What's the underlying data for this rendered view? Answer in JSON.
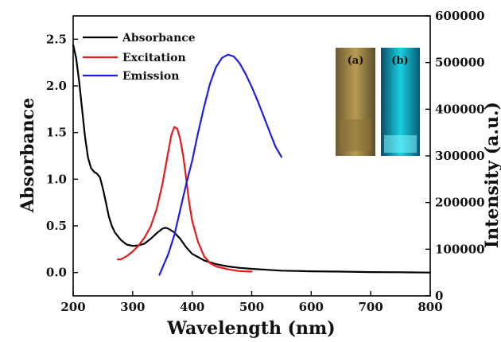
{
  "chart_data": {
    "type": "line",
    "xlabel": "Wavelength (nm)",
    "ylabel_left": "Absorbance",
    "ylabel_right": "Intensity (a.u.)",
    "xlim": [
      200,
      800
    ],
    "ylim_left": [
      -0.25,
      2.75
    ],
    "ylim_right": [
      0,
      600000
    ],
    "x_ticks": [
      "200",
      "300",
      "400",
      "500",
      "600",
      "700",
      "800"
    ],
    "y_left_ticks": [
      "0.0",
      "0.5",
      "1.0",
      "1.5",
      "2.0",
      "2.5"
    ],
    "y_right_ticks": [
      "0",
      "100000",
      "200000",
      "300000",
      "400000",
      "500000",
      "600000"
    ],
    "legend": {
      "placement": "top-left"
    },
    "grid": false,
    "series": [
      {
        "name": "Absorbance",
        "color": "#000000",
        "axis": "left",
        "points": [
          [
            200,
            2.44
          ],
          [
            205,
            2.3
          ],
          [
            210,
            2.05
          ],
          [
            215,
            1.75
          ],
          [
            220,
            1.45
          ],
          [
            225,
            1.23
          ],
          [
            230,
            1.12
          ],
          [
            235,
            1.08
          ],
          [
            240,
            1.06
          ],
          [
            245,
            1.02
          ],
          [
            250,
            0.9
          ],
          [
            255,
            0.75
          ],
          [
            260,
            0.6
          ],
          [
            265,
            0.5
          ],
          [
            270,
            0.43
          ],
          [
            280,
            0.35
          ],
          [
            290,
            0.3
          ],
          [
            300,
            0.285
          ],
          [
            310,
            0.29
          ],
          [
            320,
            0.31
          ],
          [
            330,
            0.36
          ],
          [
            340,
            0.42
          ],
          [
            350,
            0.47
          ],
          [
            355,
            0.48
          ],
          [
            360,
            0.47
          ],
          [
            370,
            0.43
          ],
          [
            380,
            0.36
          ],
          [
            390,
            0.27
          ],
          [
            400,
            0.2
          ],
          [
            420,
            0.13
          ],
          [
            440,
            0.09
          ],
          [
            460,
            0.065
          ],
          [
            480,
            0.05
          ],
          [
            500,
            0.04
          ],
          [
            550,
            0.02
          ],
          [
            600,
            0.013
          ],
          [
            650,
            0.01
          ],
          [
            700,
            0.005
          ],
          [
            750,
            0.003
          ],
          [
            800,
            0.0
          ]
        ]
      },
      {
        "name": "Excitation",
        "color": "#e41a1c",
        "axis": "right",
        "points": [
          [
            275,
            78000
          ],
          [
            280,
            78000
          ],
          [
            290,
            85000
          ],
          [
            300,
            95000
          ],
          [
            310,
            108000
          ],
          [
            320,
            125000
          ],
          [
            330,
            148000
          ],
          [
            340,
            185000
          ],
          [
            350,
            240000
          ],
          [
            360,
            310000
          ],
          [
            365,
            345000
          ],
          [
            370,
            362000
          ],
          [
            375,
            358000
          ],
          [
            380,
            335000
          ],
          [
            385,
            300000
          ],
          [
            390,
            250000
          ],
          [
            395,
            200000
          ],
          [
            400,
            160000
          ],
          [
            410,
            115000
          ],
          [
            420,
            85000
          ],
          [
            430,
            70000
          ],
          [
            440,
            63000
          ],
          [
            460,
            57000
          ],
          [
            480,
            53000
          ],
          [
            500,
            52000
          ]
        ]
      },
      {
        "name": "Emission",
        "color": "#1f1fe0",
        "axis": "right",
        "points": [
          [
            345,
            45000
          ],
          [
            360,
            90000
          ],
          [
            370,
            130000
          ],
          [
            380,
            185000
          ],
          [
            390,
            240000
          ],
          [
            400,
            290000
          ],
          [
            410,
            350000
          ],
          [
            420,
            405000
          ],
          [
            430,
            455000
          ],
          [
            440,
            490000
          ],
          [
            450,
            510000
          ],
          [
            460,
            517000
          ],
          [
            470,
            513000
          ],
          [
            480,
            498000
          ],
          [
            490,
            475000
          ],
          [
            500,
            448000
          ],
          [
            510,
            418000
          ],
          [
            520,
            385000
          ],
          [
            530,
            352000
          ],
          [
            540,
            320000
          ],
          [
            550,
            298000
          ]
        ]
      }
    ],
    "inset": {
      "labels": [
        "(a)",
        "(b)"
      ],
      "vial_colors": [
        "#b5994f",
        "#16c7d8"
      ]
    }
  }
}
